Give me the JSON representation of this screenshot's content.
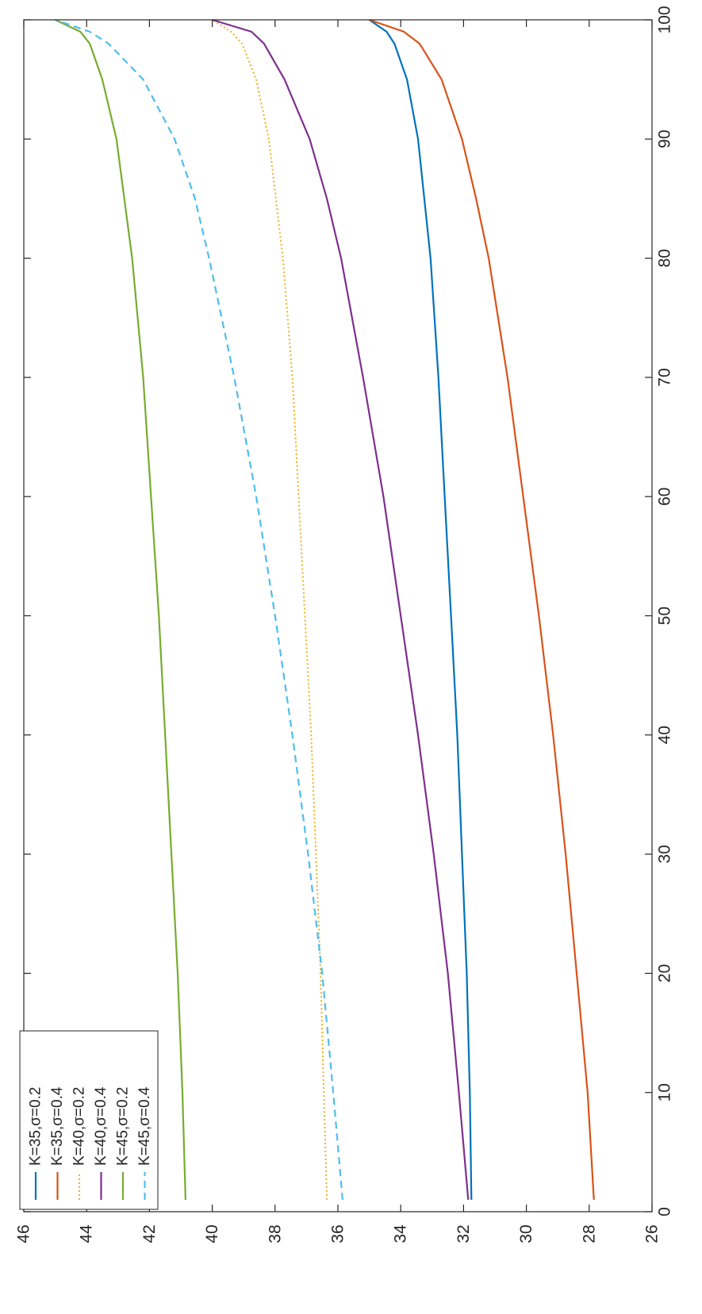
{
  "chart_data": {
    "type": "line",
    "rotated": "90deg-clockwise",
    "xlim": [
      0,
      100
    ],
    "ylim": [
      26,
      46
    ],
    "xticks": [
      "0",
      "10",
      "20",
      "30",
      "40",
      "50",
      "60",
      "70",
      "80",
      "90",
      "100"
    ],
    "yticks": [
      "26",
      "28",
      "30",
      "32",
      "34",
      "36",
      "38",
      "40",
      "42",
      "44",
      "46"
    ],
    "legend_position": "bottom-left",
    "grid": false,
    "series": [
      {
        "name": "K=35,σ=0.2",
        "color": "#0072bd",
        "style": "solid",
        "points": [
          [
            1,
            31.75
          ],
          [
            10,
            31.8
          ],
          [
            20,
            31.9
          ],
          [
            30,
            32.05
          ],
          [
            40,
            32.2
          ],
          [
            50,
            32.4
          ],
          [
            60,
            32.6
          ],
          [
            70,
            32.8
          ],
          [
            80,
            33.05
          ],
          [
            85,
            33.25
          ],
          [
            90,
            33.45
          ],
          [
            95,
            33.8
          ],
          [
            98,
            34.2
          ],
          [
            99,
            34.45
          ],
          [
            100,
            35
          ]
        ]
      },
      {
        "name": "K=35,σ=0.4",
        "color": "#d95319",
        "style": "solid",
        "points": [
          [
            1,
            27.85
          ],
          [
            10,
            28.05
          ],
          [
            20,
            28.4
          ],
          [
            30,
            28.75
          ],
          [
            40,
            29.15
          ],
          [
            50,
            29.6
          ],
          [
            60,
            30.1
          ],
          [
            70,
            30.6
          ],
          [
            80,
            31.2
          ],
          [
            85,
            31.6
          ],
          [
            90,
            32.05
          ],
          [
            95,
            32.7
          ],
          [
            98,
            33.4
          ],
          [
            99,
            33.9
          ],
          [
            100,
            35
          ]
        ]
      },
      {
        "name": "K=40,σ=0.2",
        "color": "#edb120",
        "style": "dotted",
        "points": [
          [
            1,
            36.35
          ],
          [
            10,
            36.45
          ],
          [
            20,
            36.55
          ],
          [
            30,
            36.7
          ],
          [
            40,
            36.85
          ],
          [
            50,
            37.05
          ],
          [
            60,
            37.25
          ],
          [
            70,
            37.45
          ],
          [
            80,
            37.75
          ],
          [
            90,
            38.2
          ],
          [
            95,
            38.6
          ],
          [
            98,
            39.05
          ],
          [
            99,
            39.4
          ],
          [
            100,
            40
          ]
        ]
      },
      {
        "name": "K=40,σ=0.4",
        "color": "#7e2f8e",
        "style": "solid",
        "points": [
          [
            1,
            31.85
          ],
          [
            10,
            32.15
          ],
          [
            20,
            32.5
          ],
          [
            30,
            32.95
          ],
          [
            40,
            33.45
          ],
          [
            50,
            34.0
          ],
          [
            60,
            34.55
          ],
          [
            70,
            35.2
          ],
          [
            80,
            35.9
          ],
          [
            85,
            36.35
          ],
          [
            90,
            36.9
          ],
          [
            95,
            37.7
          ],
          [
            98,
            38.35
          ],
          [
            99,
            38.75
          ],
          [
            100,
            40
          ]
        ]
      },
      {
        "name": "K=45,σ=0.2",
        "color": "#77ac30",
        "style": "solid",
        "points": [
          [
            1,
            40.85
          ],
          [
            10,
            40.95
          ],
          [
            20,
            41.1
          ],
          [
            30,
            41.3
          ],
          [
            40,
            41.5
          ],
          [
            50,
            41.7
          ],
          [
            60,
            41.95
          ],
          [
            70,
            42.2
          ],
          [
            80,
            42.55
          ],
          [
            90,
            43.05
          ],
          [
            95,
            43.5
          ],
          [
            98,
            43.9
          ],
          [
            99,
            44.2
          ],
          [
            100,
            45
          ]
        ]
      },
      {
        "name": "K=45,σ=0.4",
        "color": "#4dbeee",
        "style": "dashed",
        "points": [
          [
            1,
            35.85
          ],
          [
            10,
            36.15
          ],
          [
            20,
            36.5
          ],
          [
            30,
            36.95
          ],
          [
            40,
            37.45
          ],
          [
            50,
            38.0
          ],
          [
            60,
            38.6
          ],
          [
            70,
            39.3
          ],
          [
            80,
            40.1
          ],
          [
            85,
            40.55
          ],
          [
            90,
            41.2
          ],
          [
            95,
            42.2
          ],
          [
            98,
            43.3
          ],
          [
            99,
            43.9
          ],
          [
            100,
            45
          ]
        ]
      }
    ]
  }
}
